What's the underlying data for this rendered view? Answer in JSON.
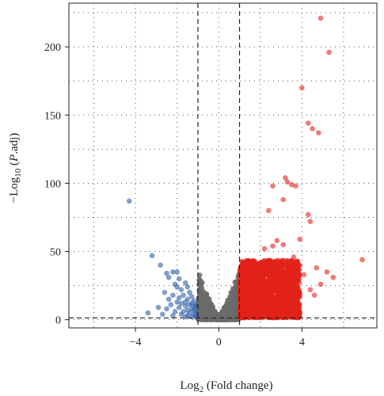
{
  "chart_data": {
    "type": "scatter",
    "xlabel_parts": [
      "Log",
      "2",
      " (Fold change)"
    ],
    "ylabel_parts": [
      "−Log",
      "10",
      " (",
      "P",
      ".adj)"
    ],
    "xlim": [
      -7.2,
      7.6
    ],
    "ylim": [
      -6,
      232
    ],
    "x_ticks": [
      -4,
      0,
      4
    ],
    "x_tick_labels": [
      "−4",
      "0",
      "4"
    ],
    "y_ticks": [
      0,
      50,
      100,
      150,
      200
    ],
    "y_tick_labels": [
      "0",
      "50",
      "100",
      "150",
      "200"
    ],
    "x_grid": [
      -6,
      -4,
      -2,
      0,
      2,
      4,
      6
    ],
    "y_grid": [
      0,
      25,
      50,
      75,
      100,
      125,
      150,
      175,
      200,
      225
    ],
    "grid": true,
    "thresholds": {
      "log2fc": [
        -1,
        1
      ],
      "neg_log10_padj": 1.3
    },
    "colors": {
      "down": "#2f5fa6",
      "ns": "#6b6b6b",
      "up": "#e2231a"
    },
    "series": [
      {
        "group": "down",
        "points": [
          [
            -4.3,
            87
          ],
          [
            -3.2,
            47
          ],
          [
            -2.8,
            40
          ],
          [
            -2.5,
            34
          ],
          [
            -2.2,
            35
          ],
          [
            -2.0,
            35
          ],
          [
            -1.9,
            30
          ],
          [
            -2.4,
            31
          ],
          [
            -1.6,
            27
          ],
          [
            -2.1,
            26
          ],
          [
            -1.5,
            24
          ],
          [
            -1.8,
            22
          ],
          [
            -2.6,
            20
          ],
          [
            -1.4,
            20
          ],
          [
            -1.7,
            18
          ],
          [
            -2.2,
            18
          ],
          [
            -1.3,
            17
          ],
          [
            -1.9,
            16
          ],
          [
            -2.4,
            15
          ],
          [
            -1.5,
            15
          ],
          [
            -1.2,
            14
          ],
          [
            -1.6,
            13
          ],
          [
            -2.0,
            13
          ],
          [
            -1.3,
            12
          ],
          [
            -1.8,
            12
          ],
          [
            -1.1,
            11
          ],
          [
            -1.4,
            11
          ],
          [
            -2.3,
            11
          ],
          [
            -1.2,
            10
          ],
          [
            -1.6,
            10
          ],
          [
            -1.9,
            9
          ],
          [
            -1.1,
            9
          ],
          [
            -1.3,
            8
          ],
          [
            -2.5,
            8
          ],
          [
            -1.5,
            7
          ],
          [
            -1.2,
            7
          ],
          [
            -1.7,
            6
          ],
          [
            -1.1,
            6
          ],
          [
            -2.1,
            6
          ],
          [
            -1.4,
            5
          ],
          [
            -1.2,
            4
          ],
          [
            -1.8,
            4
          ],
          [
            -2.7,
            4
          ],
          [
            -1.1,
            3
          ],
          [
            -1.5,
            3
          ],
          [
            -2.2,
            3
          ],
          [
            -1.3,
            2
          ],
          [
            -1.6,
            2
          ],
          [
            -1.1,
            1.8
          ],
          [
            -2.9,
            9
          ],
          [
            -3.4,
            5
          ],
          [
            -2.0,
            24
          ]
        ]
      },
      {
        "group": "up",
        "points": [
          [
            4.9,
            221
          ],
          [
            5.3,
            196
          ],
          [
            4.0,
            170
          ],
          [
            4.3,
            144
          ],
          [
            4.8,
            137
          ],
          [
            4.5,
            140
          ],
          [
            3.7,
            98
          ],
          [
            3.3,
            101
          ],
          [
            3.5,
            99
          ],
          [
            3.2,
            104
          ],
          [
            2.6,
            98
          ],
          [
            4.3,
            77
          ],
          [
            4.4,
            72
          ],
          [
            3.1,
            88
          ],
          [
            2.4,
            80
          ],
          [
            3.9,
            59
          ],
          [
            6.9,
            44
          ],
          [
            5.5,
            31
          ],
          [
            5.2,
            35
          ],
          [
            4.7,
            38
          ],
          [
            4.9,
            26
          ],
          [
            3.6,
            46
          ],
          [
            3.4,
            42
          ],
          [
            3.1,
            55
          ],
          [
            2.8,
            58
          ],
          [
            2.6,
            54
          ],
          [
            2.2,
            52
          ],
          [
            4.1,
            33
          ],
          [
            3.8,
            30
          ],
          [
            4.4,
            22
          ],
          [
            4.6,
            18
          ]
        ]
      }
    ],
    "dense_regions": {
      "ns": {
        "x_range": [
          -1.0,
          1.0
        ],
        "y_max": 34,
        "count": 700
      },
      "up": {
        "x_range": [
          1.0,
          3.9
        ],
        "y_max": 42,
        "count": 1700
      }
    }
  }
}
